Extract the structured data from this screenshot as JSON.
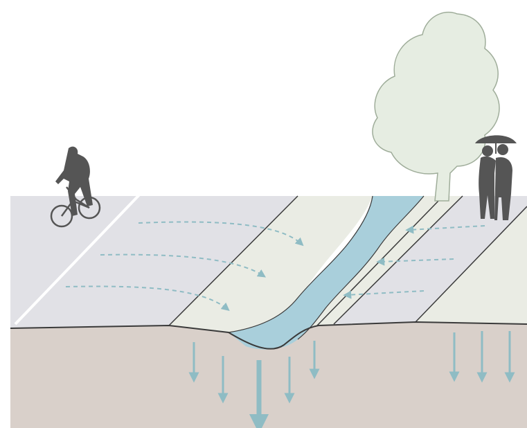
{
  "colors": {
    "background": "#ffffff",
    "road": "#e1e1e6",
    "median": "#eaece4",
    "bioswale": "#a9cfdb",
    "soil": "#d9d0ca",
    "flow_arrow": "#8fbcc4",
    "line": "#3a3a3a",
    "tree_fill": "#e6ede2",
    "tree_stroke": "#9fad9a",
    "figure": "#555555",
    "bike_line": "#ffffff"
  },
  "icons": {
    "cyclist": "cyclist-icon",
    "tree": "tree-icon",
    "people": "people-with-umbrella-icon"
  },
  "flows": {
    "surface_runoff_left": 3,
    "surface_runoff_right": 3,
    "infiltration_under_swale": 5,
    "infiltration_right": 3
  }
}
